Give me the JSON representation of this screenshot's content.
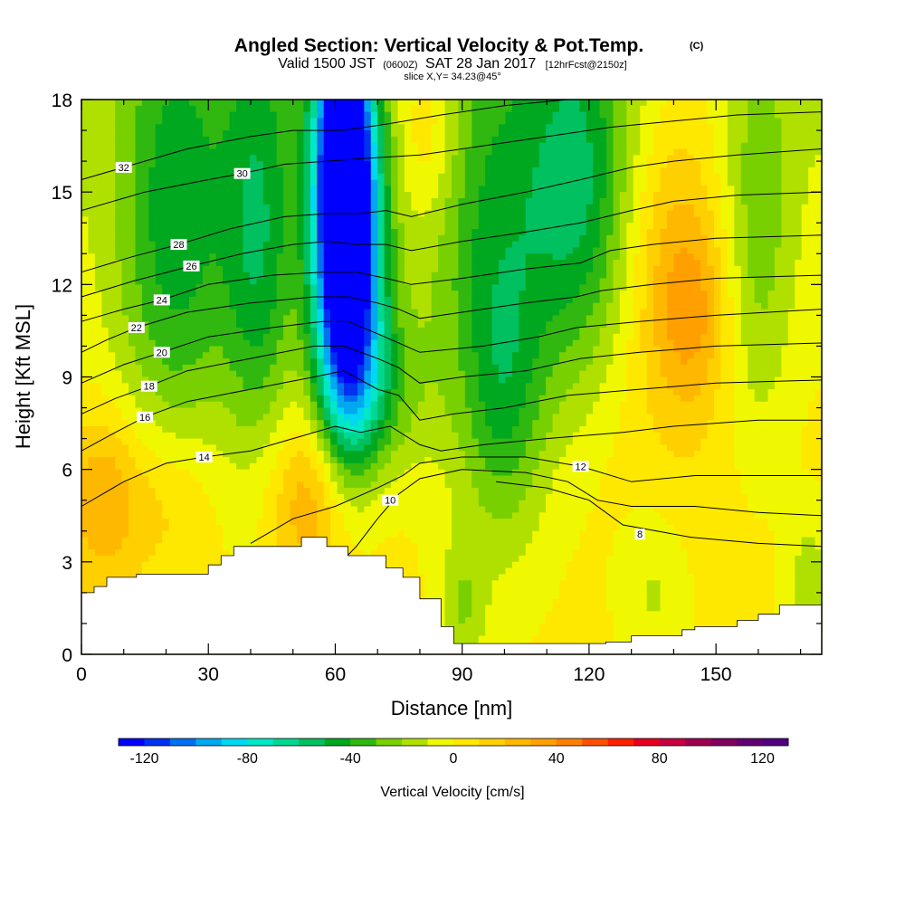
{
  "chart_data": {
    "type": "heatmap",
    "title": "Angled Section: Vertical Velocity & Pot.Temp.",
    "title_mark": "(C)",
    "subtitle": {
      "valid_label": "Valid 1500 JST",
      "utc": "(0600Z)",
      "date": "SAT 28 Jan 2017",
      "forecast": "[12hrFcst@2150z]",
      "slice": "slice X,Y= 34.23@45°"
    },
    "xlabel": "Distance [nm]",
    "ylabel": "Height [Kft MSL]",
    "xlim": [
      0,
      175
    ],
    "ylim": [
      0,
      18
    ],
    "x_ticks": [
      "0",
      "30",
      "60",
      "90",
      "120",
      "150"
    ],
    "y_ticks": [
      "0",
      "3",
      "6",
      "9",
      "12",
      "15",
      "18"
    ],
    "colorbar": {
      "label": "Vertical Velocity [cm/s]",
      "min": -130,
      "max": 130,
      "tick_labels": [
        "-120",
        "-80",
        "-40",
        "0",
        "40",
        "80",
        "120"
      ],
      "colors": [
        "#0000ff",
        "#0030f0",
        "#0070f0",
        "#00a8f0",
        "#00d8f0",
        "#00e8c8",
        "#00d890",
        "#00c060",
        "#00a820",
        "#30b810",
        "#78d000",
        "#b0e000",
        "#f0f800",
        "#ffe800",
        "#ffd000",
        "#ffb800",
        "#ffa000",
        "#ff8000",
        "#ff5000",
        "#ff2000",
        "#e80020",
        "#c80040",
        "#a00050",
        "#800060",
        "#600070",
        "#500080"
      ]
    },
    "terrain": [
      [
        0,
        2.0
      ],
      [
        3,
        2.2
      ],
      [
        6,
        2.5
      ],
      [
        13,
        2.6
      ],
      [
        30,
        2.9
      ],
      [
        33,
        3.2
      ],
      [
        36,
        3.5
      ],
      [
        52,
        3.8
      ],
      [
        58,
        3.5
      ],
      [
        63,
        3.2
      ],
      [
        72,
        2.8
      ],
      [
        76,
        2.5
      ],
      [
        80,
        1.8
      ],
      [
        85,
        0.9
      ],
      [
        88,
        0.35
      ],
      [
        112,
        0.35
      ],
      [
        120,
        0.35
      ],
      [
        124,
        0.4
      ],
      [
        130,
        0.6
      ],
      [
        142,
        0.8
      ],
      [
        145,
        0.9
      ],
      [
        155,
        1.1
      ],
      [
        160,
        1.3
      ],
      [
        165,
        1.6
      ],
      [
        175,
        1.6
      ]
    ],
    "velocity_features": [
      {
        "x": 62,
        "h": 14.5,
        "sx": 5,
        "sh": 5,
        "value": -105
      },
      {
        "x": 64,
        "h": 12,
        "sx": 6,
        "sh": 4,
        "value": -70
      },
      {
        "x": 62,
        "h": 16.5,
        "sx": 4,
        "sh": 3,
        "value": -60
      },
      {
        "x": 70,
        "h": 8.5,
        "sx": 8,
        "sh": 2,
        "value": -25
      },
      {
        "x": 22,
        "h": 14,
        "sx": 10,
        "sh": 6,
        "value": -45
      },
      {
        "x": 42,
        "h": 13,
        "sx": 6,
        "sh": 5,
        "value": -40
      },
      {
        "x": 98,
        "h": 13,
        "sx": 12,
        "sh": 6,
        "value": -40
      },
      {
        "x": 100,
        "h": 8,
        "sx": 6,
        "sh": 3,
        "value": -20
      },
      {
        "x": 118,
        "h": 15,
        "sx": 8,
        "sh": 4,
        "value": -35
      },
      {
        "x": 160,
        "h": 14,
        "sx": 6,
        "sh": 5,
        "value": -25
      },
      {
        "x": 140,
        "h": 13,
        "sx": 8,
        "sh": 4,
        "value": 25
      },
      {
        "x": 145,
        "h": 11,
        "sx": 6,
        "sh": 2,
        "value": 20
      },
      {
        "x": 56,
        "h": 5,
        "sx": 8,
        "sh": 2,
        "value": 30
      },
      {
        "x": 5,
        "h": 5,
        "sx": 6,
        "sh": 2,
        "value": 25
      },
      {
        "x": 20,
        "h": 5,
        "sx": 8,
        "sh": 2,
        "value": 18
      },
      {
        "x": 82,
        "h": 17,
        "sx": 5,
        "sh": 2,
        "value": 20
      },
      {
        "x": 90,
        "h": 1.5,
        "sx": 4,
        "sh": 1.5,
        "value": -20
      },
      {
        "x": 135,
        "h": 2,
        "sx": 6,
        "sh": 2,
        "value": -15
      },
      {
        "x": 172,
        "h": 2,
        "sx": 4,
        "sh": 2,
        "value": -20
      }
    ],
    "contours": [
      {
        "label": "8",
        "label_x": 132,
        "label_h": 3.9,
        "points": [
          [
            98,
            5.6
          ],
          [
            110,
            5.4
          ],
          [
            120,
            5.0
          ],
          [
            128,
            4.2
          ],
          [
            136,
            4.0
          ],
          [
            144,
            3.8
          ],
          [
            160,
            3.6
          ],
          [
            175,
            3.5
          ]
        ]
      },
      {
        "label": "10",
        "label_x": 73,
        "label_h": 5.0,
        "points": [
          [
            60,
            2.8
          ],
          [
            65,
            3.5
          ],
          [
            70,
            4.4
          ],
          [
            75,
            5.2
          ],
          [
            80,
            5.7
          ],
          [
            90,
            6.0
          ],
          [
            105,
            5.9
          ],
          [
            115,
            5.6
          ],
          [
            122,
            5.0
          ],
          [
            130,
            4.8
          ],
          [
            145,
            4.8
          ],
          [
            160,
            4.6
          ],
          [
            175,
            4.5
          ]
        ]
      },
      {
        "label": "12",
        "label_x": 118,
        "label_h": 6.1,
        "points": [
          [
            40,
            3.6
          ],
          [
            50,
            4.4
          ],
          [
            60,
            4.8
          ],
          [
            70,
            5.4
          ],
          [
            76,
            5.8
          ],
          [
            80,
            6.2
          ],
          [
            90,
            6.4
          ],
          [
            105,
            6.4
          ],
          [
            118,
            6.1
          ],
          [
            130,
            5.6
          ],
          [
            145,
            5.8
          ],
          [
            160,
            5.8
          ],
          [
            175,
            5.8
          ]
        ]
      },
      {
        "label": "14",
        "label_x": 29,
        "label_h": 6.4,
        "points": [
          [
            0,
            4.8
          ],
          [
            10,
            5.6
          ],
          [
            20,
            6.2
          ],
          [
            29,
            6.4
          ],
          [
            40,
            6.6
          ],
          [
            50,
            7.0
          ],
          [
            60,
            7.4
          ],
          [
            66,
            7.2
          ],
          [
            73,
            7.4
          ],
          [
            80,
            6.8
          ],
          [
            85,
            6.6
          ],
          [
            95,
            6.8
          ],
          [
            110,
            7.0
          ],
          [
            128,
            7.2
          ],
          [
            140,
            7.4
          ],
          [
            160,
            7.6
          ],
          [
            175,
            7.6
          ]
        ]
      },
      {
        "label": "16",
        "label_x": 15,
        "label_h": 7.7,
        "points": [
          [
            0,
            6.6
          ],
          [
            8,
            7.2
          ],
          [
            15,
            7.7
          ],
          [
            25,
            8.2
          ],
          [
            40,
            8.6
          ],
          [
            55,
            9.0
          ],
          [
            62,
            9.2
          ],
          [
            70,
            8.6
          ],
          [
            75,
            8.4
          ],
          [
            80,
            7.6
          ],
          [
            88,
            7.8
          ],
          [
            100,
            8.0
          ],
          [
            115,
            8.4
          ],
          [
            132,
            8.6
          ],
          [
            150,
            8.8
          ],
          [
            175,
            8.9
          ]
        ]
      },
      {
        "label": "18",
        "label_x": 16,
        "label_h": 8.7,
        "points": [
          [
            0,
            7.8
          ],
          [
            8,
            8.3
          ],
          [
            16,
            8.7
          ],
          [
            25,
            9.2
          ],
          [
            40,
            9.6
          ],
          [
            55,
            10.0
          ],
          [
            62,
            10.0
          ],
          [
            70,
            9.6
          ],
          [
            75,
            9.3
          ],
          [
            80,
            8.8
          ],
          [
            90,
            9.0
          ],
          [
            105,
            9.2
          ],
          [
            118,
            9.6
          ],
          [
            132,
            9.8
          ],
          [
            150,
            10.0
          ],
          [
            175,
            10.1
          ]
        ]
      },
      {
        "label": "20",
        "label_x": 19,
        "label_h": 9.8,
        "points": [
          [
            0,
            8.8
          ],
          [
            10,
            9.4
          ],
          [
            19,
            9.8
          ],
          [
            30,
            10.3
          ],
          [
            45,
            10.6
          ],
          [
            57,
            10.8
          ],
          [
            63,
            10.8
          ],
          [
            70,
            10.4
          ],
          [
            75,
            10.1
          ],
          [
            80,
            9.8
          ],
          [
            95,
            10.0
          ],
          [
            108,
            10.3
          ],
          [
            117,
            10.6
          ],
          [
            132,
            10.8
          ],
          [
            150,
            11.0
          ],
          [
            175,
            11.2
          ]
        ]
      },
      {
        "label": "22",
        "label_x": 13,
        "label_h": 10.6,
        "points": [
          [
            0,
            9.8
          ],
          [
            6,
            10.2
          ],
          [
            13,
            10.6
          ],
          [
            25,
            11.1
          ],
          [
            40,
            11.4
          ],
          [
            55,
            11.6
          ],
          [
            63,
            11.6
          ],
          [
            70,
            11.4
          ],
          [
            75,
            11.2
          ],
          [
            80,
            10.9
          ],
          [
            90,
            11.1
          ],
          [
            105,
            11.4
          ],
          [
            117,
            11.6
          ],
          [
            123,
            11.8
          ],
          [
            135,
            12.0
          ],
          [
            150,
            12.2
          ],
          [
            175,
            12.3
          ]
        ]
      },
      {
        "label": "24",
        "label_x": 19,
        "label_h": 11.5,
        "points": [
          [
            0,
            10.8
          ],
          [
            10,
            11.2
          ],
          [
            19,
            11.5
          ],
          [
            30,
            12.0
          ],
          [
            45,
            12.3
          ],
          [
            57,
            12.4
          ],
          [
            65,
            12.4
          ],
          [
            72,
            12.2
          ],
          [
            78,
            12.0
          ],
          [
            90,
            12.2
          ],
          [
            105,
            12.5
          ],
          [
            118,
            12.7
          ],
          [
            125,
            13.1
          ],
          [
            135,
            13.3
          ],
          [
            150,
            13.5
          ],
          [
            175,
            13.6
          ]
        ]
      },
      {
        "label": "26",
        "label_x": 26,
        "label_h": 12.6,
        "points": [
          [
            0,
            11.6
          ],
          [
            12,
            12.1
          ],
          [
            26,
            12.6
          ],
          [
            38,
            13.0
          ],
          [
            50,
            13.3
          ],
          [
            58,
            13.4
          ],
          [
            65,
            13.3
          ],
          [
            72,
            13.3
          ],
          [
            78,
            13.1
          ],
          [
            90,
            13.4
          ],
          [
            105,
            13.7
          ],
          [
            118,
            14.0
          ],
          [
            130,
            14.4
          ],
          [
            140,
            14.7
          ],
          [
            155,
            14.9
          ],
          [
            175,
            15.0
          ]
        ]
      },
      {
        "label": "28",
        "label_x": 23,
        "label_h": 13.3,
        "points": [
          [
            0,
            12.4
          ],
          [
            12,
            12.9
          ],
          [
            23,
            13.3
          ],
          [
            35,
            13.8
          ],
          [
            48,
            14.2
          ],
          [
            58,
            14.3
          ],
          [
            66,
            14.3
          ],
          [
            72,
            14.4
          ],
          [
            78,
            14.2
          ],
          [
            90,
            14.6
          ],
          [
            105,
            15.0
          ],
          [
            118,
            15.4
          ],
          [
            130,
            15.8
          ],
          [
            140,
            16.0
          ],
          [
            155,
            16.2
          ],
          [
            175,
            16.4
          ]
        ]
      },
      {
        "label": "30",
        "label_x": 38,
        "label_h": 15.6,
        "points": [
          [
            0,
            14.4
          ],
          [
            15,
            15.0
          ],
          [
            30,
            15.4
          ],
          [
            38,
            15.6
          ],
          [
            48,
            15.9
          ],
          [
            58,
            16.0
          ],
          [
            68,
            16.1
          ],
          [
            80,
            16.2
          ],
          [
            95,
            16.5
          ],
          [
            110,
            16.8
          ],
          [
            125,
            17.1
          ],
          [
            140,
            17.3
          ],
          [
            155,
            17.5
          ],
          [
            175,
            17.6
          ]
        ]
      },
      {
        "label": "32",
        "label_x": 10,
        "label_h": 15.8,
        "points": [
          [
            0,
            15.4
          ],
          [
            10,
            15.8
          ],
          [
            25,
            16.4
          ],
          [
            40,
            16.8
          ],
          [
            50,
            17.0
          ],
          [
            62,
            17.0
          ],
          [
            72,
            17.2
          ],
          [
            85,
            17.5
          ],
          [
            100,
            17.8
          ],
          [
            115,
            18.0
          ]
        ]
      }
    ]
  }
}
